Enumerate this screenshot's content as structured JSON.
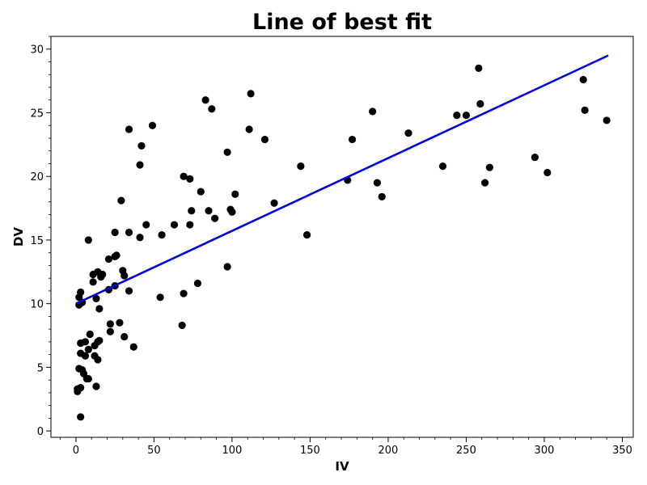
{
  "chart_data": {
    "type": "scatter",
    "title": "Line of best fit",
    "xlabel": "IV",
    "ylabel": "DV",
    "xlim": [
      -16,
      357
    ],
    "ylim": [
      -0.5,
      31
    ],
    "xticks": [
      0,
      50,
      100,
      150,
      200,
      250,
      300,
      350
    ],
    "yticks": [
      0,
      5,
      10,
      15,
      20,
      25,
      30
    ],
    "grid": false,
    "colors": {
      "points": "#000000",
      "line": "#0000e0"
    },
    "fit_line": {
      "x": [
        0,
        341
      ],
      "y": [
        10.0,
        29.5
      ]
    },
    "points": [
      [
        1,
        3.1
      ],
      [
        1,
        3.3
      ],
      [
        3,
        3.4
      ],
      [
        3,
        1.1
      ],
      [
        2,
        4.9
      ],
      [
        4,
        4.8
      ],
      [
        5,
        4.5
      ],
      [
        7,
        4.1
      ],
      [
        8,
        4.1
      ],
      [
        3,
        6.1
      ],
      [
        3,
        6.9
      ],
      [
        6,
        5.9
      ],
      [
        6,
        7.0
      ],
      [
        8,
        6.4
      ],
      [
        9,
        7.6
      ],
      [
        12,
        5.9
      ],
      [
        12,
        6.7
      ],
      [
        13,
        3.5
      ],
      [
        14,
        5.6
      ],
      [
        14,
        7.0
      ],
      [
        15,
        7.1
      ],
      [
        2,
        9.9
      ],
      [
        2,
        10.5
      ],
      [
        4,
        10.1
      ],
      [
        3,
        10.9
      ],
      [
        11,
        11.7
      ],
      [
        11,
        12.3
      ],
      [
        13,
        10.4
      ],
      [
        14,
        12.5
      ],
      [
        15,
        9.6
      ],
      [
        16,
        12.1
      ],
      [
        17,
        12.3
      ],
      [
        22,
        7.8
      ],
      [
        22,
        8.4
      ],
      [
        21,
        11.1
      ],
      [
        21,
        13.5
      ],
      [
        8,
        15.0
      ],
      [
        25,
        11.4
      ],
      [
        25,
        13.7
      ],
      [
        26,
        13.8
      ],
      [
        25,
        15.6
      ],
      [
        28,
        8.5
      ],
      [
        29,
        18.1
      ],
      [
        30,
        12.6
      ],
      [
        31,
        12.2
      ],
      [
        31,
        7.4
      ],
      [
        34,
        11.0
      ],
      [
        34,
        15.6
      ],
      [
        34,
        23.7
      ],
      [
        37,
        6.6
      ],
      [
        41,
        15.2
      ],
      [
        41,
        20.9
      ],
      [
        42,
        22.4
      ],
      [
        45,
        16.2
      ],
      [
        49,
        24.0
      ],
      [
        54,
        10.5
      ],
      [
        55,
        15.4
      ],
      [
        63,
        16.2
      ],
      [
        68,
        8.3
      ],
      [
        69,
        10.8
      ],
      [
        69,
        20.0
      ],
      [
        73,
        16.2
      ],
      [
        73,
        19.8
      ],
      [
        74,
        17.3
      ],
      [
        78,
        11.6
      ],
      [
        80,
        18.8
      ],
      [
        83,
        26.0
      ],
      [
        85,
        17.3
      ],
      [
        87,
        25.3
      ],
      [
        89,
        16.7
      ],
      [
        97,
        12.9
      ],
      [
        97,
        21.9
      ],
      [
        99,
        17.4
      ],
      [
        100,
        17.2
      ],
      [
        102,
        18.6
      ],
      [
        111,
        23.7
      ],
      [
        112,
        26.5
      ],
      [
        121,
        22.9
      ],
      [
        127,
        17.9
      ],
      [
        144,
        20.8
      ],
      [
        148,
        15.4
      ],
      [
        174,
        19.7
      ],
      [
        177,
        22.9
      ],
      [
        190,
        25.1
      ],
      [
        193,
        19.5
      ],
      [
        196,
        18.4
      ],
      [
        213,
        23.4
      ],
      [
        235,
        20.8
      ],
      [
        244,
        24.8
      ],
      [
        250,
        24.8
      ],
      [
        258,
        28.5
      ],
      [
        259,
        25.7
      ],
      [
        262,
        19.5
      ],
      [
        265,
        20.7
      ],
      [
        294,
        21.5
      ],
      [
        302,
        20.3
      ],
      [
        325,
        27.6
      ],
      [
        326,
        25.2
      ],
      [
        340,
        24.4
      ]
    ]
  }
}
